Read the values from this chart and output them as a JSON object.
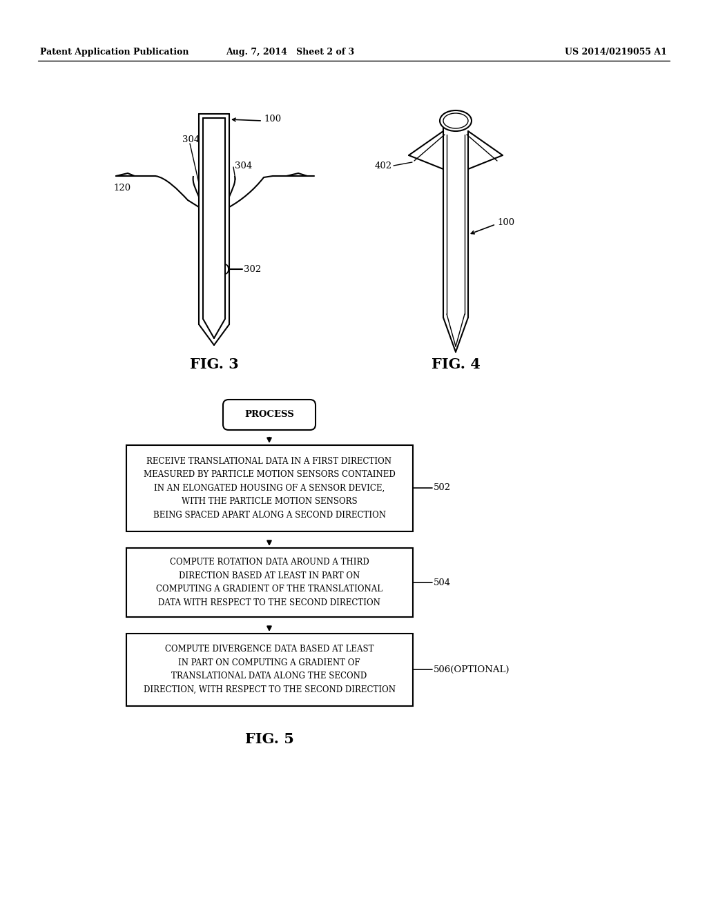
{
  "header_left": "Patent Application Publication",
  "header_mid": "Aug. 7, 2014   Sheet 2 of 3",
  "header_right": "US 2014/0219055 A1",
  "fig3_label": "FIG. 3",
  "fig4_label": "FIG. 4",
  "fig5_label": "FIG. 5",
  "process_label": "PROCESS",
  "box1_text": "RECEIVE TRANSLATIONAL DATA IN A FIRST DIRECTION\nMEASURED BY PARTICLE MOTION SENSORS CONTAINED\nIN AN ELONGATED HOUSING OF A SENSOR DEVICE,\nWITH THE PARTICLE MOTION SENSORS\nBEING SPACED APART ALONG A SECOND DIRECTION",
  "box1_label": "502",
  "box2_text": "COMPUTE ROTATION DATA AROUND A THIRD\nDIRECTION BASED AT LEAST IN PART ON\nCOMPUTING A GRADIENT OF THE TRANSLATIONAL\nDATA WITH RESPECT TO THE SECOND DIRECTION",
  "box2_label": "504",
  "box3_text": "COMPUTE DIVERGENCE DATA BASED AT LEAST\nIN PART ON COMPUTING A GRADIENT OF\nTRANSLATIONAL DATA ALONG THE SECOND\nDIRECTION, WITH RESPECT TO THE SECOND DIRECTION",
  "box3_label": "506(OPTIONAL)",
  "label_100_fig3": "100",
  "label_304a": "304",
  "label_304b": "304",
  "label_120": "120",
  "label_302": "302",
  "label_402": "402",
  "label_100_fig4": "100",
  "bg_color": "#ffffff",
  "line_color": "#000000"
}
